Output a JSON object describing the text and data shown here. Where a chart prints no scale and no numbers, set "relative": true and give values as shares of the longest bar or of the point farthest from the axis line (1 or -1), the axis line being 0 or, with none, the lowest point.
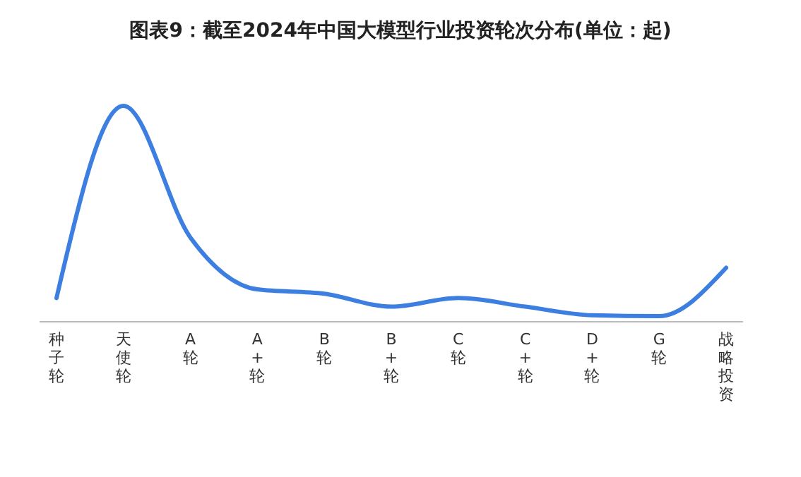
{
  "chart_data": {
    "type": "line",
    "title": "图表9：截至2024年中国大模型行业投资轮次分布(单位：起)",
    "relative": true,
    "categories": [
      "种子轮",
      "天使轮",
      "A轮",
      "A+轮",
      "B轮",
      "B+轮",
      "C轮",
      "C+轮",
      "D+轮",
      "G轮",
      "战略投资"
    ],
    "series": [
      {
        "color": "#3d7fe0",
        "values": [
          0.11,
          1,
          0.39,
          0.15,
          0.13,
          0.07,
          0.11,
          0.07,
          0.03,
          0.026,
          0.25
        ]
      }
    ],
    "marker": "none",
    "line_style": "solid"
  }
}
